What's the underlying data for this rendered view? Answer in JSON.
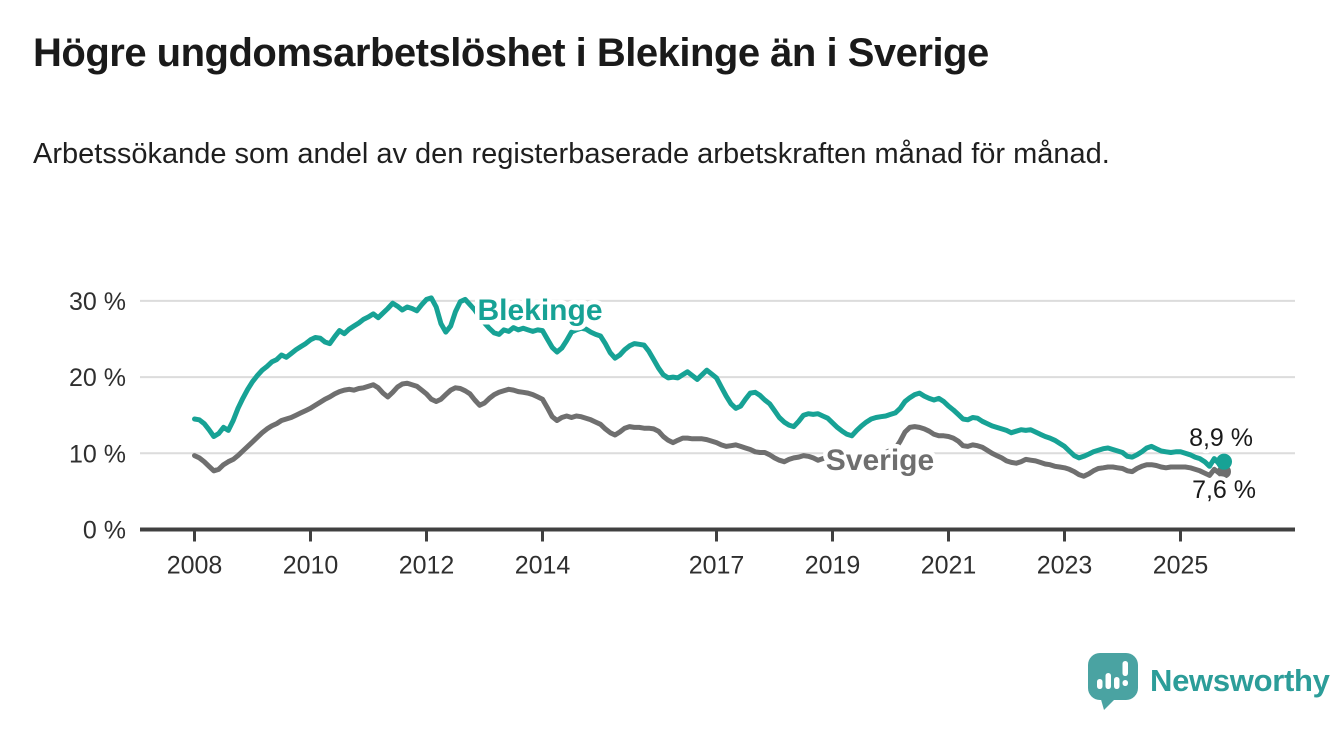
{
  "header": {
    "title": "Högre ungdomsarbetslöshet i Blekinge än i Sverige",
    "subtitle": "Arbetssökande som andel av den registerbaserade arbetskraften månad för månad."
  },
  "chart_data": {
    "type": "line",
    "title": "Högre ungdomsarbetslöshet i Blekinge än i Sverige",
    "subtitle": "Arbetssökande som andel av den registerbaserade arbetskraften månad för månad.",
    "unit": "%",
    "x_start_year": 2008,
    "x_step_months": 1,
    "x_end": "2025-10",
    "x_ticks": [
      2008,
      2010,
      2012,
      2014,
      2017,
      2019,
      2021,
      2023,
      2025
    ],
    "y_ticks": [
      0,
      10,
      20,
      30
    ],
    "y_tick_suffix": " %",
    "ylim": [
      0,
      32
    ],
    "grid": true,
    "legend_position": "inline-labels",
    "colors": {
      "grid": "#dcdcdc",
      "axis": "#404040",
      "tick_text": "#2f2f2f",
      "end_label_text": "#1a1a1a"
    },
    "series": [
      {
        "name": "Blekinge",
        "color": "#17A295",
        "end_label": "8,9 %",
        "end_value": 8.9,
        "values": [
          14.5,
          14.4,
          13.9,
          13.1,
          12.2,
          12.6,
          13.4,
          13.0,
          14.3,
          15.9,
          17.2,
          18.4,
          19.4,
          20.2,
          20.9,
          21.4,
          22.0,
          22.3,
          22.9,
          22.6,
          23.1,
          23.6,
          24.0,
          24.4,
          24.9,
          25.2,
          25.1,
          24.6,
          24.4,
          25.3,
          26.1,
          25.7,
          26.3,
          26.7,
          27.1,
          27.6,
          27.9,
          28.3,
          27.8,
          28.4,
          29.0,
          29.7,
          29.3,
          28.8,
          29.2,
          29.0,
          28.7,
          29.5,
          30.2,
          30.4,
          29.2,
          27.0,
          25.9,
          26.7,
          28.6,
          29.9,
          30.2,
          29.5,
          28.8,
          27.9,
          27.1,
          26.4,
          25.8,
          25.6,
          26.2,
          26.0,
          26.5,
          26.2,
          26.4,
          26.2,
          26.0,
          26.2,
          26.1,
          25.0,
          23.9,
          23.3,
          23.8,
          24.8,
          25.9,
          26.2,
          26.4,
          26.3,
          25.9,
          25.6,
          25.4,
          24.4,
          23.2,
          22.5,
          22.9,
          23.6,
          24.1,
          24.4,
          24.3,
          24.2,
          23.4,
          22.3,
          21.2,
          20.3,
          19.9,
          20.0,
          19.9,
          20.3,
          20.7,
          20.2,
          19.7,
          20.3,
          20.9,
          20.4,
          19.9,
          18.7,
          17.5,
          16.5,
          15.9,
          16.2,
          17.1,
          17.9,
          18.0,
          17.6,
          17.0,
          16.5,
          15.6,
          14.7,
          14.1,
          13.7,
          13.5,
          14.2,
          15.0,
          15.2,
          15.1,
          15.2,
          14.9,
          14.6,
          14.0,
          13.4,
          12.9,
          12.5,
          12.3,
          13.0,
          13.6,
          14.1,
          14.5,
          14.7,
          14.8,
          14.9,
          15.1,
          15.3,
          15.9,
          16.8,
          17.3,
          17.7,
          17.9,
          17.5,
          17.2,
          17.0,
          17.2,
          16.8,
          16.2,
          15.7,
          15.1,
          14.5,
          14.4,
          14.7,
          14.6,
          14.2,
          13.9,
          13.6,
          13.4,
          13.2,
          13.0,
          12.7,
          12.9,
          13.1,
          13.0,
          13.1,
          12.8,
          12.5,
          12.2,
          12.0,
          11.7,
          11.3,
          10.9,
          10.3,
          9.7,
          9.4,
          9.6,
          9.9,
          10.2,
          10.4,
          10.6,
          10.7,
          10.5,
          10.3,
          10.1,
          9.6,
          9.5,
          9.8,
          10.2,
          10.7,
          10.9,
          10.6,
          10.3,
          10.2,
          10.1,
          10.2,
          10.2,
          10.0,
          9.8,
          9.5,
          9.3,
          8.9,
          8.3,
          9.3,
          8.6,
          8.9
        ]
      },
      {
        "name": "Sverige",
        "color": "#6F6F6F",
        "end_label": "7,6 %",
        "end_value": 7.6,
        "values": [
          9.7,
          9.4,
          8.9,
          8.3,
          7.7,
          7.9,
          8.5,
          8.9,
          9.2,
          9.7,
          10.3,
          10.9,
          11.5,
          12.1,
          12.7,
          13.2,
          13.6,
          13.9,
          14.3,
          14.5,
          14.7,
          15.0,
          15.3,
          15.6,
          15.9,
          16.3,
          16.7,
          17.1,
          17.4,
          17.8,
          18.1,
          18.3,
          18.4,
          18.3,
          18.5,
          18.6,
          18.8,
          19.0,
          18.6,
          17.9,
          17.4,
          18.0,
          18.7,
          19.1,
          19.2,
          19.0,
          18.8,
          18.3,
          17.8,
          17.1,
          16.8,
          17.1,
          17.7,
          18.3,
          18.6,
          18.5,
          18.2,
          17.8,
          17.0,
          16.3,
          16.6,
          17.2,
          17.7,
          18.0,
          18.2,
          18.4,
          18.3,
          18.1,
          18.0,
          17.9,
          17.7,
          17.4,
          17.1,
          16.0,
          14.8,
          14.3,
          14.7,
          14.9,
          14.7,
          14.9,
          14.8,
          14.6,
          14.4,
          14.1,
          13.8,
          13.2,
          12.7,
          12.4,
          12.8,
          13.3,
          13.5,
          13.4,
          13.4,
          13.3,
          13.3,
          13.2,
          12.9,
          12.2,
          11.7,
          11.4,
          11.7,
          12.0,
          12.0,
          11.9,
          11.9,
          11.9,
          11.8,
          11.6,
          11.4,
          11.1,
          10.9,
          11.0,
          11.1,
          10.9,
          10.7,
          10.5,
          10.2,
          10.1,
          10.1,
          9.8,
          9.4,
          9.1,
          8.9,
          9.2,
          9.4,
          9.5,
          9.7,
          9.6,
          9.4,
          9.1,
          9.3,
          9.5,
          9.6,
          9.4,
          9.2,
          9.0,
          8.9,
          9.1,
          9.4,
          9.5,
          9.6,
          9.7,
          9.9,
          10.1,
          10.4,
          10.6,
          11.6,
          12.8,
          13.4,
          13.5,
          13.4,
          13.2,
          12.9,
          12.5,
          12.3,
          12.3,
          12.2,
          12.0,
          11.6,
          11.0,
          10.9,
          11.1,
          11.0,
          10.8,
          10.4,
          10.0,
          9.7,
          9.4,
          9.0,
          8.8,
          8.7,
          8.9,
          9.2,
          9.1,
          9.0,
          8.8,
          8.6,
          8.5,
          8.3,
          8.2,
          8.1,
          7.9,
          7.6,
          7.2,
          7.0,
          7.3,
          7.7,
          8.0,
          8.1,
          8.2,
          8.2,
          8.1,
          8.0,
          7.7,
          7.6,
          8.0,
          8.3,
          8.5,
          8.5,
          8.4,
          8.2,
          8.1,
          8.2,
          8.2,
          8.2,
          8.2,
          8.1,
          7.9,
          7.7,
          7.4,
          7.1,
          7.9,
          7.4,
          7.6
        ]
      }
    ]
  },
  "branding": {
    "logo_text": "Newsworthy",
    "logo_text_color": "#2C9D99",
    "logo_bubble_color": "#4AA3A2"
  }
}
